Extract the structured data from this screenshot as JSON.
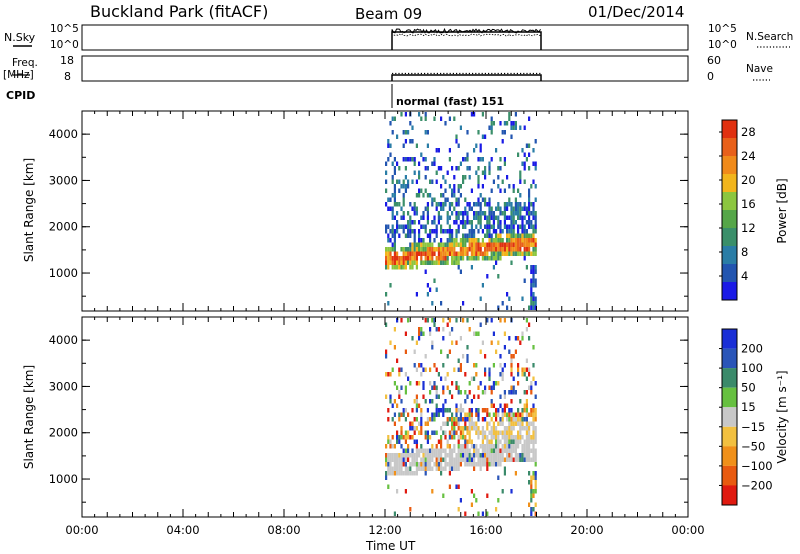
{
  "header": {
    "title": "Buckland Park (fitACF)",
    "beam": "Beam 09",
    "date": "01/Dec/2014"
  },
  "top_panels": {
    "nsky": {
      "label": "N.Sky",
      "left_ticks": [
        "10^5",
        "10^0"
      ],
      "right_ticks": [
        "10^5",
        "10^0"
      ],
      "right_label": "N.Search"
    },
    "freq": {
      "label_line1": "Freq.",
      "label_line2": "[MHz]",
      "left_ticks": [
        "18",
        "8"
      ],
      "right_ticks": [
        "60",
        "0"
      ],
      "right_label": "Nave"
    },
    "cpid": {
      "label": "CPID",
      "text": "normal (fast) 151"
    }
  },
  "chart_data": [
    {
      "type": "heatmap",
      "name": "power",
      "xlabel": "Time UT",
      "ylabel": "Slant Range [km]",
      "x_ticks": [
        "00:00",
        "04:00",
        "08:00",
        "12:00",
        "16:00",
        "20:00",
        "00:00"
      ],
      "xlim_hours": [
        0,
        24
      ],
      "y_ticks": [
        1000,
        2000,
        3000,
        4000
      ],
      "ylim_km": [
        180,
        4500
      ],
      "data_window_hours": [
        12,
        18
      ],
      "colorbar": {
        "label": "Power [dB]",
        "ticks": [
          4,
          8,
          12,
          16,
          20,
          24,
          28
        ],
        "range": [
          0,
          30
        ],
        "colors": [
          "#1a1ae6",
          "#2255b0",
          "#2a7da6",
          "#3a8f6a",
          "#55a648",
          "#8cc63f",
          "#f2b51c",
          "#f08a1a",
          "#e8601a",
          "#e03010"
        ]
      }
    },
    {
      "type": "heatmap",
      "name": "velocity",
      "xlabel": "Time UT",
      "ylabel": "Slant Range [km]",
      "x_ticks": [
        "00:00",
        "04:00",
        "08:00",
        "12:00",
        "16:00",
        "20:00",
        "00:00"
      ],
      "xlim_hours": [
        0,
        24
      ],
      "y_ticks": [
        1000,
        2000,
        3000,
        4000
      ],
      "ylim_km": [
        180,
        4500
      ],
      "data_window_hours": [
        12,
        18
      ],
      "colorbar": {
        "label": "Velocity [m s⁻¹]",
        "ticks": [
          "200",
          "100",
          "50",
          "15",
          "−15",
          "−50",
          "−100",
          "−200"
        ],
        "colors": [
          "#1a2fd6",
          "#2a55b8",
          "#3a8a6a",
          "#66c040",
          "#c8c8c8",
          "#f2c040",
          "#f0901a",
          "#e85a10",
          "#e01a10"
        ]
      }
    }
  ]
}
